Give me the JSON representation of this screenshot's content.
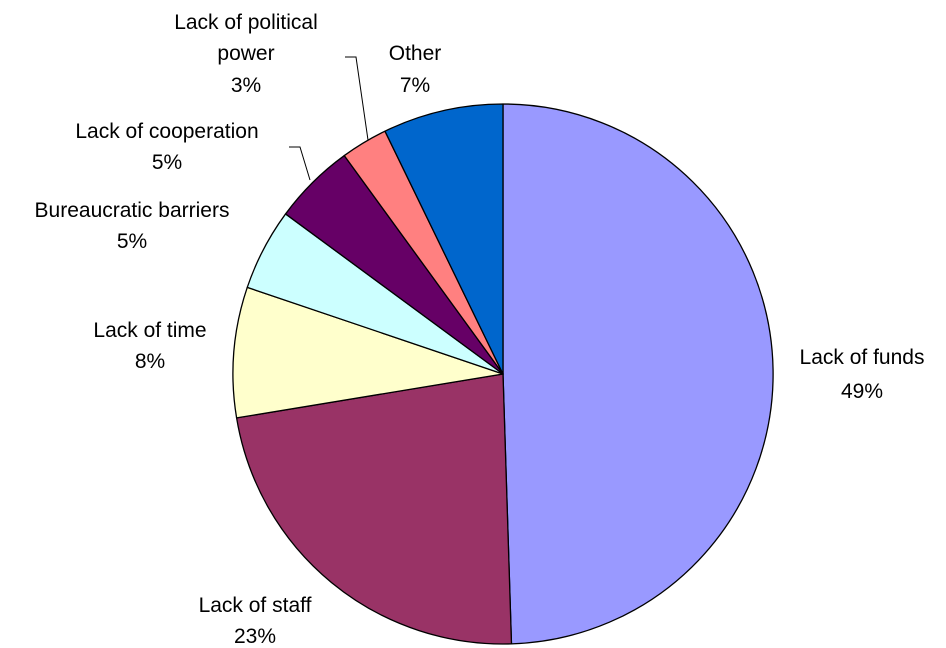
{
  "chart_data": {
    "type": "pie",
    "title": "",
    "start_angle_deg": 0,
    "direction": "clockwise",
    "slices": [
      {
        "name": "Lack of funds",
        "percent_label": "49%",
        "value": 49.5,
        "color": "#9999FF"
      },
      {
        "name": "Lack of staff",
        "percent_label": "23%",
        "value": 22.9,
        "color": "#993366"
      },
      {
        "name": "Lack of time",
        "percent_label": "8%",
        "value": 7.8,
        "color": "#FFFFCC"
      },
      {
        "name": "Bureaucratic barriers",
        "percent_label": "5%",
        "value": 4.9,
        "color": "#CCFFFF"
      },
      {
        "name": "Lack of cooperation",
        "percent_label": "5%",
        "value": 4.9,
        "color": "#660066"
      },
      {
        "name": "Lack of political power",
        "percent_label": "3%",
        "value": 2.8,
        "color": "#FF8080"
      },
      {
        "name": "Other",
        "percent_label": "7%",
        "value": 7.2,
        "color": "#0066CC"
      }
    ],
    "data_labels": [
      {
        "lines": [
          "Lack of funds",
          "49%"
        ]
      },
      {
        "lines": [
          "Lack of staff",
          "23%"
        ]
      },
      {
        "lines": [
          "Lack of time",
          "8%"
        ]
      },
      {
        "lines": [
          "Bureaucratic barriers",
          "5%"
        ]
      },
      {
        "lines": [
          "Lack of cooperation",
          "5%"
        ]
      },
      {
        "lines": [
          "Lack of political",
          "power",
          "3%"
        ]
      },
      {
        "lines": [
          "Other",
          "7%"
        ]
      }
    ]
  }
}
